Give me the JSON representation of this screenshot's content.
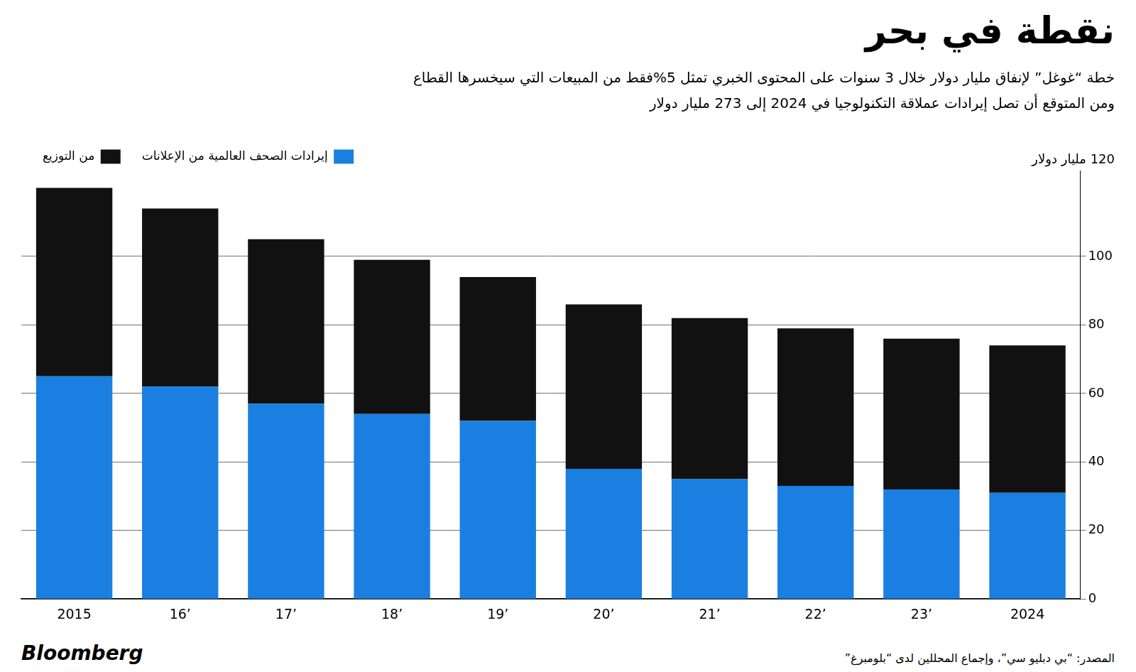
{
  "chart_data": {
    "type": "bar",
    "title": "نقطة في بحر",
    "subtitle": [
      "خطة “غوغل” لإنفاق مليار دولار خلال 3 سنوات على المحتوى الخبري تمثل 5%فقط من المبيعات التي سيخسرها القطاع",
      "ومن المتوقع أن تصل إيرادات عملاقة التكنولوجيا في 2024 إلى 273 مليار دولار"
    ],
    "ylabel": "120 مليار دولار",
    "categories": [
      "2015",
      "’16",
      "’17",
      "’18",
      "’19",
      "’20",
      "’21",
      "’22",
      "’23",
      "2024"
    ],
    "series": [
      {
        "name": "إيرادات الصحف العالمية من الإعلانات",
        "color": "#1a7fe0",
        "values": [
          65,
          62,
          57,
          54,
          52,
          38,
          35,
          33,
          32,
          31
        ]
      },
      {
        "name": "من التوزيع",
        "color": "#111111",
        "values": [
          55,
          52,
          48,
          45,
          42,
          48,
          47,
          46,
          44,
          43
        ]
      }
    ],
    "stacked": true,
    "ylim": [
      0,
      125
    ],
    "yticks": [
      0,
      20,
      40,
      60,
      80,
      100
    ],
    "grid": true,
    "legend": "top",
    "annotations": [
      "المصدر: “بي دبليو سي”، وإجماع المحللين لدى “بلومبرغ”",
      "Bloomberg"
    ]
  }
}
